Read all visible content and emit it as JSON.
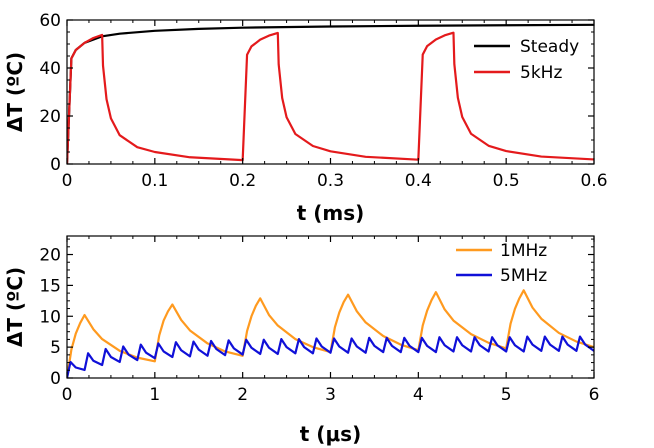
{
  "chart_data": [
    {
      "type": "line",
      "xlabel": "t (ms)",
      "ylabel": "ΔT (ºC)",
      "xlim": [
        0,
        0.6
      ],
      "ylim": [
        0,
        60
      ],
      "xticks": [
        0,
        0.1,
        0.2,
        0.3,
        0.4,
        0.5,
        0.6
      ],
      "xtick_labels": [
        "0",
        "0.1",
        "0.2",
        "0.3",
        "0.4",
        "0.5",
        "0.6"
      ],
      "yticks": [
        0,
        20,
        40,
        60
      ],
      "ytick_labels": [
        "0",
        "20",
        "40",
        "60"
      ],
      "grid": false,
      "legend_position": "top-right",
      "series": [
        {
          "name": "Steady",
          "color": "#000000",
          "x": [
            0,
            0.005,
            0.01,
            0.02,
            0.04,
            0.06,
            0.1,
            0.15,
            0.2,
            0.3,
            0.4,
            0.5,
            0.6
          ],
          "y": [
            0,
            44,
            47.5,
            50.5,
            53.2,
            54.3,
            55.5,
            56.3,
            56.8,
            57.3,
            57.6,
            57.8,
            58.0
          ]
        },
        {
          "name": "5kHz",
          "color": "#e41a1c",
          "x": [
            0,
            0.005,
            0.01,
            0.02,
            0.03,
            0.04,
            0.041,
            0.045,
            0.05,
            0.06,
            0.08,
            0.1,
            0.14,
            0.2,
            0.205,
            0.21,
            0.22,
            0.23,
            0.24,
            0.241,
            0.245,
            0.25,
            0.26,
            0.28,
            0.3,
            0.34,
            0.4,
            0.405,
            0.41,
            0.42,
            0.43,
            0.44,
            0.441,
            0.445,
            0.45,
            0.46,
            0.48,
            0.5,
            0.54,
            0.6
          ],
          "y": [
            0,
            44,
            47.5,
            50.5,
            52.5,
            53.8,
            41,
            27,
            19,
            12,
            7,
            5,
            2.8,
            1.6,
            45.5,
            49,
            51.8,
            53.5,
            54.6,
            41.5,
            27.5,
            19.5,
            12.5,
            7.5,
            5.3,
            3,
            1.8,
            45.6,
            49.1,
            51.9,
            53.6,
            54.7,
            41.6,
            27.6,
            19.6,
            12.6,
            7.6,
            5.4,
            3.1,
            1.9
          ]
        }
      ]
    },
    {
      "type": "line",
      "xlabel": "t (μs)",
      "ylabel": "ΔT (ºC)",
      "xlim": [
        0,
        6
      ],
      "ylim": [
        0,
        23
      ],
      "xticks": [
        0,
        1,
        2,
        3,
        4,
        5,
        6
      ],
      "xtick_labels": [
        "0",
        "1",
        "2",
        "3",
        "4",
        "5",
        "6"
      ],
      "yticks": [
        0,
        5,
        10,
        15,
        20
      ],
      "ytick_labels": [
        "0",
        "5",
        "10",
        "15",
        "20"
      ],
      "grid": false,
      "legend_position": "top-right",
      "series": [
        {
          "name": "1MHz",
          "color": "#ff9a1f",
          "x": [
            0,
            0.05,
            0.1,
            0.15,
            0.2,
            0.3,
            0.4,
            0.6,
            0.8,
            1.0,
            1.05,
            1.1,
            1.15,
            1.2,
            1.3,
            1.4,
            1.6,
            1.8,
            2.0,
            2.05,
            2.1,
            2.15,
            2.2,
            2.3,
            2.4,
            2.6,
            2.8,
            3.0,
            3.05,
            3.1,
            3.15,
            3.2,
            3.3,
            3.4,
            3.6,
            3.8,
            4.0,
            4.05,
            4.1,
            4.15,
            4.2,
            4.3,
            4.4,
            4.6,
            4.8,
            5.0,
            5.05,
            5.1,
            5.15,
            5.2,
            5.3,
            5.4,
            5.6,
            5.8,
            6.0
          ],
          "y": [
            0,
            4.6,
            7.2,
            8.9,
            10.2,
            7.9,
            6.3,
            4.4,
            3.3,
            2.7,
            6.9,
            9.3,
            10.8,
            11.9,
            9.4,
            7.7,
            5.6,
            4.3,
            3.6,
            7.6,
            10.0,
            11.7,
            12.9,
            10.2,
            8.5,
            6.3,
            5.0,
            4.2,
            8.2,
            10.6,
            12.3,
            13.5,
            10.8,
            9.0,
            6.8,
            5.4,
            4.5,
            8.5,
            10.9,
            12.6,
            13.9,
            11.1,
            9.3,
            7.1,
            5.7,
            4.8,
            8.8,
            11.2,
            12.9,
            14.2,
            11.4,
            9.6,
            7.3,
            5.9,
            5.0
          ]
        },
        {
          "name": "5MHz",
          "color": "#1010d8",
          "x": [
            0,
            0.04,
            0.1,
            0.2,
            0.24,
            0.3,
            0.4,
            0.44,
            0.5,
            0.6,
            0.64,
            0.7,
            0.8,
            0.84,
            0.9,
            1.0,
            1.04,
            1.1,
            1.2,
            1.24,
            1.3,
            1.4,
            1.44,
            1.5,
            1.6,
            1.64,
            1.7,
            1.8,
            1.84,
            1.9,
            2.0,
            2.04,
            2.1,
            2.2,
            2.24,
            2.3,
            2.4,
            2.44,
            2.5,
            2.6,
            2.64,
            2.7,
            2.8,
            2.84,
            2.9,
            3.0,
            3.04,
            3.1,
            3.2,
            3.24,
            3.3,
            3.4,
            3.44,
            3.5,
            3.6,
            3.64,
            3.7,
            3.8,
            3.84,
            3.9,
            4.0,
            4.04,
            4.1,
            4.2,
            4.24,
            4.3,
            4.4,
            4.44,
            4.5,
            4.6,
            4.64,
            4.7,
            4.8,
            4.84,
            4.9,
            5.0,
            5.04,
            5.1,
            5.2,
            5.24,
            5.3,
            5.4,
            5.44,
            5.5,
            5.6,
            5.64,
            5.7,
            5.8,
            5.84,
            5.9,
            6.0
          ],
          "y": [
            0,
            2.6,
            1.7,
            1.3,
            4.0,
            2.8,
            2.1,
            4.7,
            3.4,
            2.6,
            5.1,
            3.8,
            2.9,
            5.4,
            4.1,
            3.2,
            5.6,
            4.3,
            3.4,
            5.8,
            4.5,
            3.5,
            5.9,
            4.6,
            3.6,
            6.0,
            4.7,
            3.7,
            6.1,
            4.8,
            3.8,
            6.2,
            4.9,
            3.9,
            6.2,
            4.9,
            3.9,
            6.3,
            5.0,
            4.0,
            6.3,
            5.0,
            4.0,
            6.4,
            5.1,
            4.1,
            6.4,
            5.1,
            4.1,
            6.4,
            5.1,
            4.1,
            6.5,
            5.2,
            4.2,
            6.5,
            5.2,
            4.2,
            6.5,
            5.2,
            4.2,
            6.5,
            5.2,
            4.2,
            6.6,
            5.3,
            4.3,
            6.6,
            5.3,
            4.3,
            6.6,
            5.3,
            4.3,
            6.6,
            5.3,
            4.3,
            6.6,
            5.3,
            4.3,
            6.7,
            5.4,
            4.4,
            6.7,
            5.4,
            4.4,
            6.7,
            5.4,
            4.4,
            6.7,
            5.4,
            4.4
          ]
        }
      ]
    }
  ]
}
